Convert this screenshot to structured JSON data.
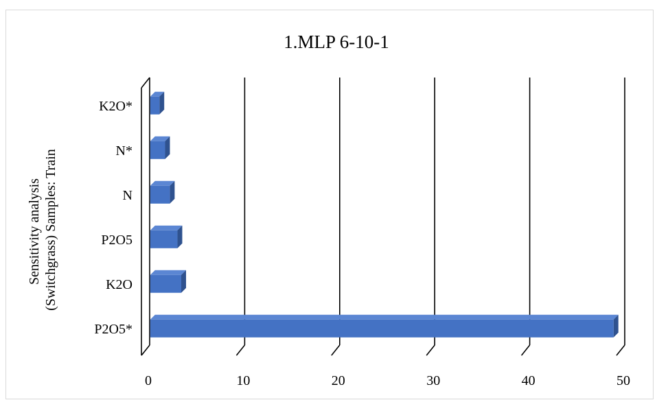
{
  "chart_data": {
    "type": "bar",
    "orientation": "horizontal",
    "title": "1.MLP 6-10-1",
    "ylabel_lines": [
      "Sensitivity analysis",
      "(Switchgrass) Samples: Train"
    ],
    "xlabel": "",
    "categories": [
      "P2O5*",
      "K2O",
      "P2O5",
      "N",
      "N*",
      "K2O*"
    ],
    "values": [
      49.2,
      3.7,
      3.3,
      2.5,
      2.0,
      1.4
    ],
    "xlim": [
      0,
      50
    ],
    "xticks": [
      "0",
      "10",
      "20",
      "30",
      "40",
      "50"
    ],
    "grid": true,
    "legend": "none",
    "style": "3d",
    "bar_color": "#4472C4",
    "bar_top_color": "#5B86D3",
    "bar_side_color": "#2F528F"
  }
}
